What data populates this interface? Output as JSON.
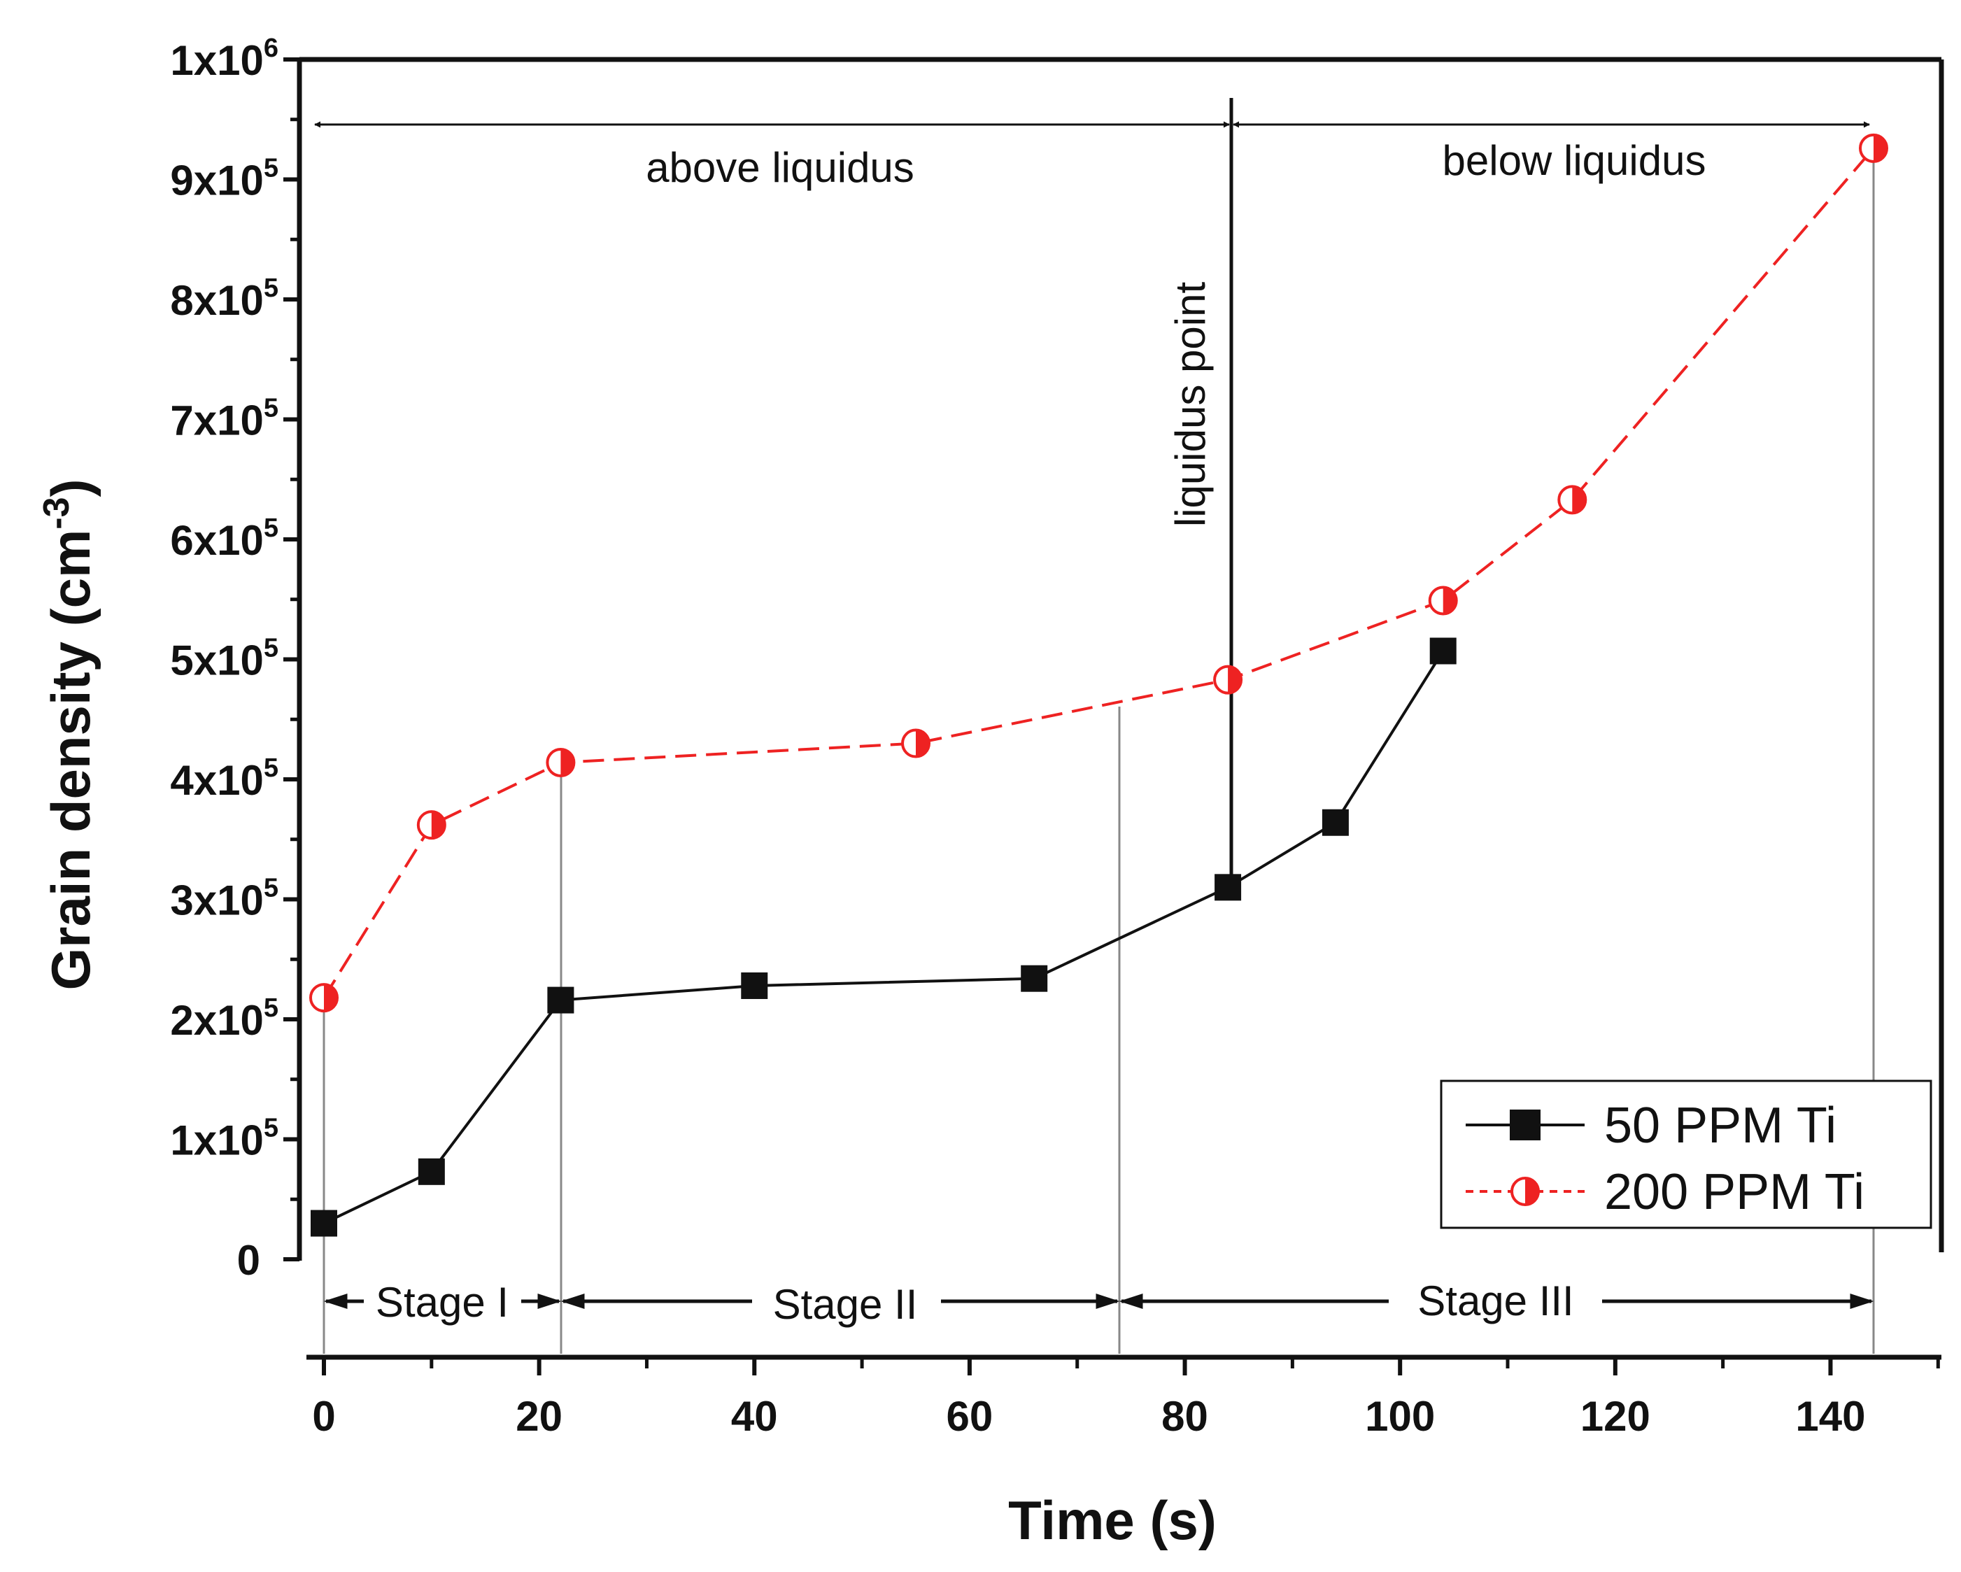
{
  "chart_data": {
    "type": "line",
    "xlabel": "Time (s)",
    "ylabel": "Grain density (cm",
    "ylabel_sup": "-3",
    "ylabel_end": ")",
    "xlim": [
      -2,
      150
    ],
    "ylim": [
      0,
      1000000
    ],
    "x_ticks": [
      0,
      20,
      40,
      60,
      80,
      100,
      120,
      140
    ],
    "x_tick_labels": [
      "0",
      "20",
      "40",
      "60",
      "80",
      "100",
      "120",
      "140"
    ],
    "y_ticks": [
      {
        "value": 0,
        "label": "0",
        "exp": ""
      },
      {
        "value": 100000,
        "label": "1x10",
        "exp": "5"
      },
      {
        "value": 200000,
        "label": "2x10",
        "exp": "5"
      },
      {
        "value": 300000,
        "label": "3x10",
        "exp": "5"
      },
      {
        "value": 400000,
        "label": "4x10",
        "exp": "5"
      },
      {
        "value": 500000,
        "label": "5x10",
        "exp": "5"
      },
      {
        "value": 600000,
        "label": "6x10",
        "exp": "5"
      },
      {
        "value": 700000,
        "label": "7x10",
        "exp": "5"
      },
      {
        "value": 800000,
        "label": "8x10",
        "exp": "5"
      },
      {
        "value": 900000,
        "label": "9x10",
        "exp": "5"
      },
      {
        "value": 1000000,
        "label": "1x10",
        "exp": "6"
      }
    ],
    "series": [
      {
        "name": "50 PPM Ti",
        "color": "#111111",
        "marker": "square",
        "line_style": "solid",
        "x": [
          0,
          10,
          22,
          40,
          66,
          84,
          94,
          104
        ],
        "y": [
          30000,
          73000,
          216000,
          228000,
          234000,
          310000,
          364000,
          507000
        ]
      },
      {
        "name": "200 PPM Ti",
        "color": "#ee2222",
        "marker": "half-circle",
        "line_style": "dashed",
        "x": [
          0,
          10,
          22,
          55,
          84,
          104,
          116,
          144
        ],
        "y": [
          218000,
          362000,
          414000,
          430000,
          483000,
          549000,
          633000,
          926000
        ]
      }
    ],
    "annotations": {
      "above_liquidus": "above liquidus",
      "below_liquidus": "below liquidus",
      "liquidus_point": "liquidus point",
      "liquidus_x": 84,
      "stage_boundaries": [
        0,
        22,
        74,
        144
      ],
      "stages": [
        "Stage I",
        "Stage II",
        "Stage III"
      ]
    },
    "legend_position": "bottom-right"
  }
}
